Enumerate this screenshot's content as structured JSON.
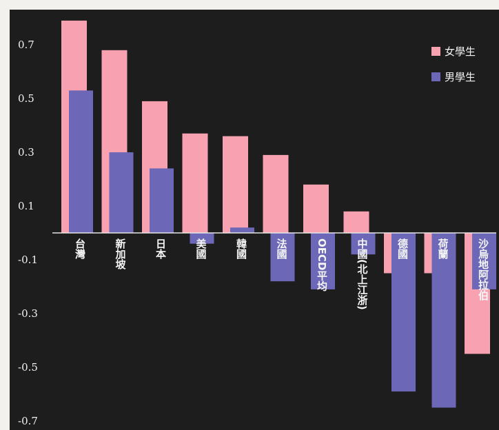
{
  "chart_data": {
    "type": "bar",
    "title": "",
    "xlabel": "",
    "ylabel": "",
    "categories": [
      "台灣",
      "新加坡",
      "日本",
      "美國",
      "韓國",
      "法國",
      "OECD平均",
      "中國(北上江浙)",
      "德國",
      "荷蘭",
      "沙烏地阿拉伯"
    ],
    "series": [
      {
        "name": "女學生",
        "color": "#f7a1b1",
        "values": [
          0.79,
          0.68,
          0.49,
          0.37,
          0.36,
          0.29,
          0.18,
          0.08,
          -0.15,
          -0.15,
          -0.45
        ]
      },
      {
        "name": "男學生",
        "color": "#6c68b7",
        "values": [
          0.53,
          0.3,
          0.24,
          -0.04,
          0.02,
          -0.18,
          -0.21,
          -0.08,
          -0.59,
          -0.65,
          -0.21
        ]
      }
    ],
    "yticks": [
      "0.7",
      "0.5",
      "0.3",
      "0.1",
      "-0.1",
      "-0.3",
      "-0.5",
      "-0.7"
    ],
    "ytick_values": [
      0.7,
      0.5,
      0.3,
      0.1,
      -0.1,
      -0.3,
      -0.5,
      -0.7
    ],
    "ylim": [
      -0.72,
      0.81
    ],
    "grid": false,
    "legend": {
      "position": "top-right"
    },
    "axis_color": "#e6e6e6",
    "background": "#1d1d1d"
  }
}
